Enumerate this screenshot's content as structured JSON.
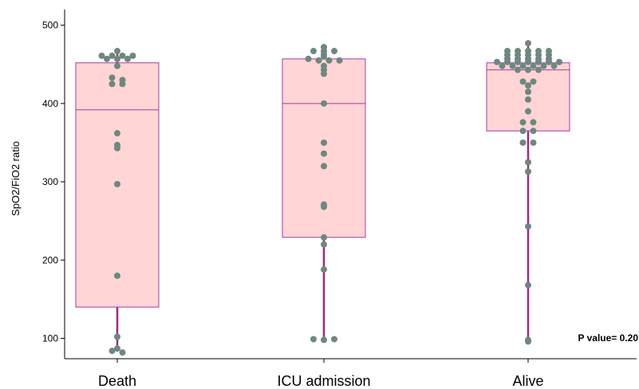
{
  "chart_data": {
    "type": "box",
    "title": "",
    "xlabel": "",
    "ylabel": "SpO2/FiO2 ratio",
    "ylim": [
      80,
      510
    ],
    "yticks": [
      "100",
      "200",
      "300",
      "400",
      "500"
    ],
    "categories": [
      "Death",
      "ICU admission",
      "Alive"
    ],
    "boxes": [
      {
        "category": "Death",
        "whisker_low": 83,
        "q1": 140,
        "median": 392,
        "q3": 452,
        "whisker_high": 467
      },
      {
        "category": "ICU admission",
        "whisker_low": 98,
        "q1": 229,
        "median": 400,
        "q3": 457,
        "whisker_high": 472
      },
      {
        "category": "Alive",
        "whisker_low": 97,
        "q1": 365,
        "median": 443,
        "q3": 452,
        "whisker_high": 477
      }
    ],
    "points": [
      {
        "category": "Death",
        "values": [
          467,
          461,
          461,
          461,
          461,
          457,
          457,
          457,
          448,
          433,
          430,
          425,
          425,
          362,
          347,
          343,
          297,
          180,
          102,
          87,
          84,
          82
        ]
      },
      {
        "category": "ICU admission",
        "values": [
          472,
          467,
          467,
          467,
          463,
          460,
          457,
          455,
          455,
          455,
          448,
          443,
          438,
          400,
          350,
          336,
          320,
          271,
          268,
          229,
          220,
          188,
          99,
          98,
          99
        ]
      },
      {
        "category": "Alive",
        "values": [
          477,
          467,
          467,
          467,
          467,
          467,
          462,
          462,
          462,
          462,
          462,
          457,
          457,
          457,
          457,
          457,
          453,
          453,
          453,
          453,
          453,
          453,
          453,
          448,
          448,
          448,
          448,
          448,
          448,
          443,
          443,
          443,
          428,
          428,
          423,
          415,
          405,
          390,
          376,
          376,
          365,
          365,
          350,
          350,
          325,
          313,
          243,
          168,
          98,
          96
        ]
      }
    ],
    "annotation": "P value=  0.20",
    "colors": {
      "box_fill": "#ffd5d5",
      "box_stroke": "#a83aa6",
      "whisker": "#a0287c",
      "point": "#6f8780"
    },
    "grid": false,
    "legend": "none"
  }
}
